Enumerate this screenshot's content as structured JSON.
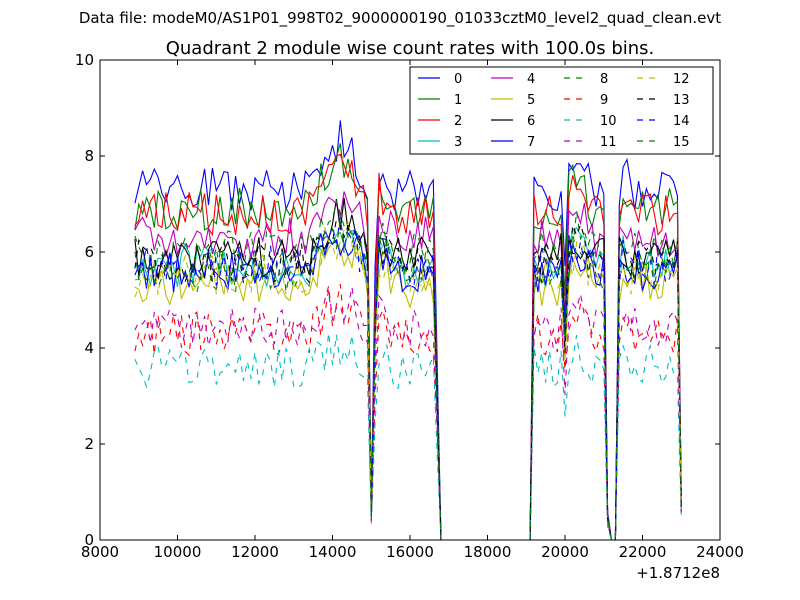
{
  "suptitle": "Data file: modeM0/AS1P01_998T02_9000000190_01033cztM0_level2_quad_clean.evt",
  "chart_data": {
    "type": "line",
    "title": "Quadrant 2 module wise count rates with 100.0s bins.",
    "xlabel": "",
    "ylabel": "",
    "x_offset_label": "+1.8712e8",
    "xlim": [
      8000,
      24000
    ],
    "ylim": [
      0,
      10
    ],
    "x_ticks": [
      8000,
      10000,
      12000,
      14000,
      16000,
      18000,
      20000,
      22000,
      24000
    ],
    "x_tick_labels": [
      "8000",
      "10000",
      "12000",
      "14000",
      "16000",
      "18000",
      "20000",
      "22000",
      "24000"
    ],
    "y_ticks": [
      0,
      2,
      4,
      6,
      8,
      10
    ],
    "y_tick_labels": [
      "0",
      "2",
      "4",
      "6",
      "8",
      "10"
    ],
    "grid": false,
    "legend_position": "top-right",
    "x_start": 8900,
    "x_step": 100,
    "n_points": 142,
    "segments": [
      {
        "start": 8900,
        "end": 14900,
        "factor": 1.0
      },
      {
        "start": 14950,
        "end": 14950,
        "factor": 0.06
      },
      {
        "start": 15050,
        "end": 15050,
        "factor": 0.12
      },
      {
        "start": 15100,
        "end": 15100,
        "factor": 0.75
      },
      {
        "start": 15150,
        "end": 16650,
        "factor": 1.0
      },
      {
        "start": 16750,
        "end": 19150,
        "factor": 0.0
      },
      {
        "start": 19200,
        "end": 21050,
        "factor": 1.0
      },
      {
        "start": 21100,
        "end": 21100,
        "factor": 0.08
      },
      {
        "start": 21150,
        "end": 21350,
        "factor": 0.0
      },
      {
        "start": 21400,
        "end": 22900,
        "factor": 1.0
      },
      {
        "start": 23000,
        "end": 23000,
        "factor": 0.12
      }
    ],
    "series": [
      {
        "name": "0",
        "color": "#0000ff",
        "dash": "solid",
        "base": 7.3
      },
      {
        "name": "1",
        "color": "#008000",
        "dash": "solid",
        "base": 6.9
      },
      {
        "name": "2",
        "color": "#ff0000",
        "dash": "solid",
        "base": 6.8
      },
      {
        "name": "3",
        "color": "#00bfbf",
        "dash": "solid",
        "base": 5.7
      },
      {
        "name": "4",
        "color": "#bf00bf",
        "dash": "solid",
        "base": 6.3
      },
      {
        "name": "5",
        "color": "#bfbf00",
        "dash": "solid",
        "base": 5.3
      },
      {
        "name": "6",
        "color": "#000000",
        "dash": "solid",
        "base": 5.9
      },
      {
        "name": "7",
        "color": "#0000ff",
        "dash": "solid",
        "base": 5.6
      },
      {
        "name": "8",
        "color": "#008000",
        "dash": "dashed",
        "base": 6.0
      },
      {
        "name": "9",
        "color": "#ff0000",
        "dash": "dashed",
        "base": 4.3
      },
      {
        "name": "10",
        "color": "#00bfbf",
        "dash": "dashed",
        "base": 3.6
      },
      {
        "name": "11",
        "color": "#bf00bf",
        "dash": "dashed",
        "base": 4.4
      },
      {
        "name": "12",
        "color": "#bfbf00",
        "dash": "dashed",
        "base": 5.5
      },
      {
        "name": "13",
        "color": "#000000",
        "dash": "dashed",
        "base": 5.8
      },
      {
        "name": "14",
        "color": "#0000ff",
        "dash": "dashed",
        "base": 5.7
      },
      {
        "name": "15",
        "color": "#008000",
        "dash": "dashed",
        "base": 5.6
      }
    ]
  }
}
